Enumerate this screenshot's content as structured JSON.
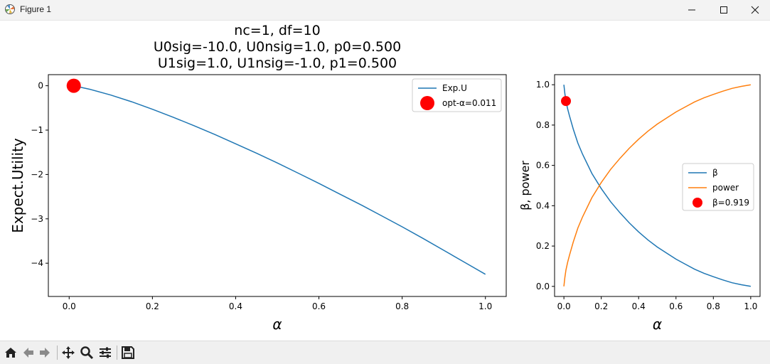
{
  "window": {
    "title": "Figure 1"
  },
  "toolbar": {
    "buttons": [
      "home-icon",
      "back-icon",
      "forward-icon",
      "pan-icon",
      "zoom-icon",
      "configure-subplots-icon",
      "save-icon"
    ]
  },
  "colors": {
    "blue": "#1f77b4",
    "orange": "#ff7f0e",
    "red": "#ff0000"
  },
  "chart_data": [
    {
      "type": "line",
      "title_lines": [
        "nc=1, df=10",
        "U0sig=-10.0, U0nsig=1.0, p0=0.500",
        "U1sig=1.0, U1nsig=-1.0, p1=0.500"
      ],
      "xlabel": "α",
      "ylabel": "Expect.Utility",
      "xlim": [
        -0.05,
        1.05
      ],
      "ylim": [
        -4.75,
        0.25
      ],
      "xticks": [
        0.0,
        0.2,
        0.4,
        0.6,
        0.8,
        1.0
      ],
      "xtick_labels": [
        "0.0",
        "0.2",
        "0.4",
        "0.6",
        "0.8",
        "1.0"
      ],
      "yticks": [
        0,
        -1,
        -2,
        -3,
        -4
      ],
      "ytick_labels": [
        "0",
        "−1",
        "−2",
        "−3",
        "−4"
      ],
      "series": [
        {
          "name": "Exp.U",
          "color": "#1f77b4",
          "x": [
            0.0,
            0.011,
            0.05,
            0.1,
            0.15,
            0.2,
            0.25,
            0.3,
            0.35,
            0.4,
            0.45,
            0.5,
            0.55,
            0.6,
            0.65,
            0.7,
            0.75,
            0.8,
            0.85,
            0.9,
            0.95,
            1.0
          ],
          "y": [
            0.0,
            0.0,
            -0.08,
            -0.21,
            -0.36,
            -0.53,
            -0.71,
            -0.9,
            -1.1,
            -1.31,
            -1.52,
            -1.74,
            -1.97,
            -2.2,
            -2.44,
            -2.68,
            -2.93,
            -3.18,
            -3.44,
            -3.71,
            -3.98,
            -4.25
          ]
        }
      ],
      "points": [
        {
          "name": "opt-α=0.011",
          "x": 0.011,
          "y": 0.0,
          "color": "#ff0000"
        }
      ],
      "legend": {
        "position": "top-right",
        "entries": [
          {
            "label": "Exp.U",
            "kind": "line",
            "color": "#1f77b4"
          },
          {
            "label": "opt-α=0.011",
            "kind": "marker",
            "color": "#ff0000"
          }
        ]
      },
      "grid": false
    },
    {
      "type": "line",
      "xlabel": "α",
      "ylabel": "β, power",
      "xlim": [
        -0.05,
        1.05
      ],
      "ylim": [
        -0.05,
        1.05
      ],
      "xticks": [
        0.0,
        0.2,
        0.4,
        0.6,
        0.8,
        1.0
      ],
      "xtick_labels": [
        "0.0",
        "0.2",
        "0.4",
        "0.6",
        "0.8",
        "1.0"
      ],
      "yticks": [
        0.0,
        0.2,
        0.4,
        0.6,
        0.8,
        1.0
      ],
      "ytick_labels": [
        "0.0",
        "0.2",
        "0.4",
        "0.6",
        "0.8",
        "1.0"
      ],
      "series": [
        {
          "name": "β",
          "color": "#1f77b4",
          "x": [
            0.0,
            0.005,
            0.011,
            0.02,
            0.03,
            0.05,
            0.075,
            0.1,
            0.15,
            0.2,
            0.25,
            0.3,
            0.35,
            0.4,
            0.45,
            0.5,
            0.55,
            0.6,
            0.65,
            0.7,
            0.75,
            0.8,
            0.85,
            0.9,
            0.95,
            1.0
          ],
          "y": [
            1.0,
            0.955,
            0.919,
            0.88,
            0.845,
            0.78,
            0.71,
            0.655,
            0.56,
            0.485,
            0.42,
            0.365,
            0.315,
            0.27,
            0.23,
            0.195,
            0.165,
            0.135,
            0.11,
            0.085,
            0.065,
            0.048,
            0.032,
            0.018,
            0.008,
            0.0
          ]
        },
        {
          "name": "power",
          "color": "#ff7f0e",
          "x": [
            0.0,
            0.005,
            0.011,
            0.02,
            0.03,
            0.05,
            0.075,
            0.1,
            0.15,
            0.2,
            0.25,
            0.3,
            0.35,
            0.4,
            0.45,
            0.5,
            0.55,
            0.6,
            0.65,
            0.7,
            0.75,
            0.8,
            0.85,
            0.9,
            0.95,
            1.0
          ],
          "y": [
            0.0,
            0.045,
            0.081,
            0.12,
            0.155,
            0.22,
            0.29,
            0.345,
            0.44,
            0.515,
            0.58,
            0.635,
            0.685,
            0.73,
            0.77,
            0.805,
            0.835,
            0.865,
            0.89,
            0.915,
            0.935,
            0.952,
            0.968,
            0.982,
            0.992,
            1.0
          ]
        }
      ],
      "points": [
        {
          "name": "β=0.919",
          "x": 0.011,
          "y": 0.919,
          "color": "#ff0000"
        }
      ],
      "legend": {
        "position": "center-right",
        "entries": [
          {
            "label": "β",
            "kind": "line",
            "color": "#1f77b4"
          },
          {
            "label": "power",
            "kind": "line",
            "color": "#ff7f0e"
          },
          {
            "label": "β=0.919",
            "kind": "marker",
            "color": "#ff0000"
          }
        ]
      },
      "grid": false
    }
  ]
}
